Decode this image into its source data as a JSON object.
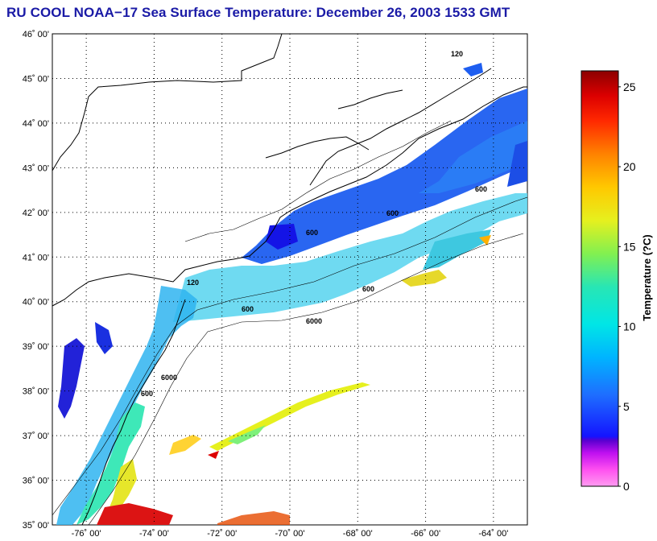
{
  "title": "RU COOL  NOAA−17  Sea Surface Temperature:  December 26, 2003 1533 GMT",
  "map": {
    "lat_ticks": [
      "35˚ 00'",
      "36˚ 00'",
      "37˚ 00'",
      "38˚ 00'",
      "39˚ 00'",
      "40˚ 00'",
      "41˚ 00'",
      "42˚ 00'",
      "43˚ 00'",
      "44˚ 00'",
      "45˚ 00'",
      "46˚ 00'"
    ],
    "lon_ticks": [
      "-76˚ 00'",
      "-74˚ 00'",
      "-72˚ 00'",
      "-70˚ 00'",
      "-68˚ 00'",
      "-66˚ 00'",
      "-64˚ 00'"
    ],
    "lat_range": [
      35,
      46
    ],
    "lon_range": [
      -77,
      -63
    ],
    "grid": true,
    "isobath_labels": [
      "120",
      "600",
      "6000"
    ]
  },
  "colorbar": {
    "label": "Temperature (?C)",
    "ticks": [
      "0",
      "5",
      "10",
      "15",
      "20",
      "25"
    ],
    "range": [
      0,
      26
    ]
  },
  "colors": {
    "title": "#1a1aa6",
    "land": "#ffffff",
    "coast": "#000000"
  }
}
